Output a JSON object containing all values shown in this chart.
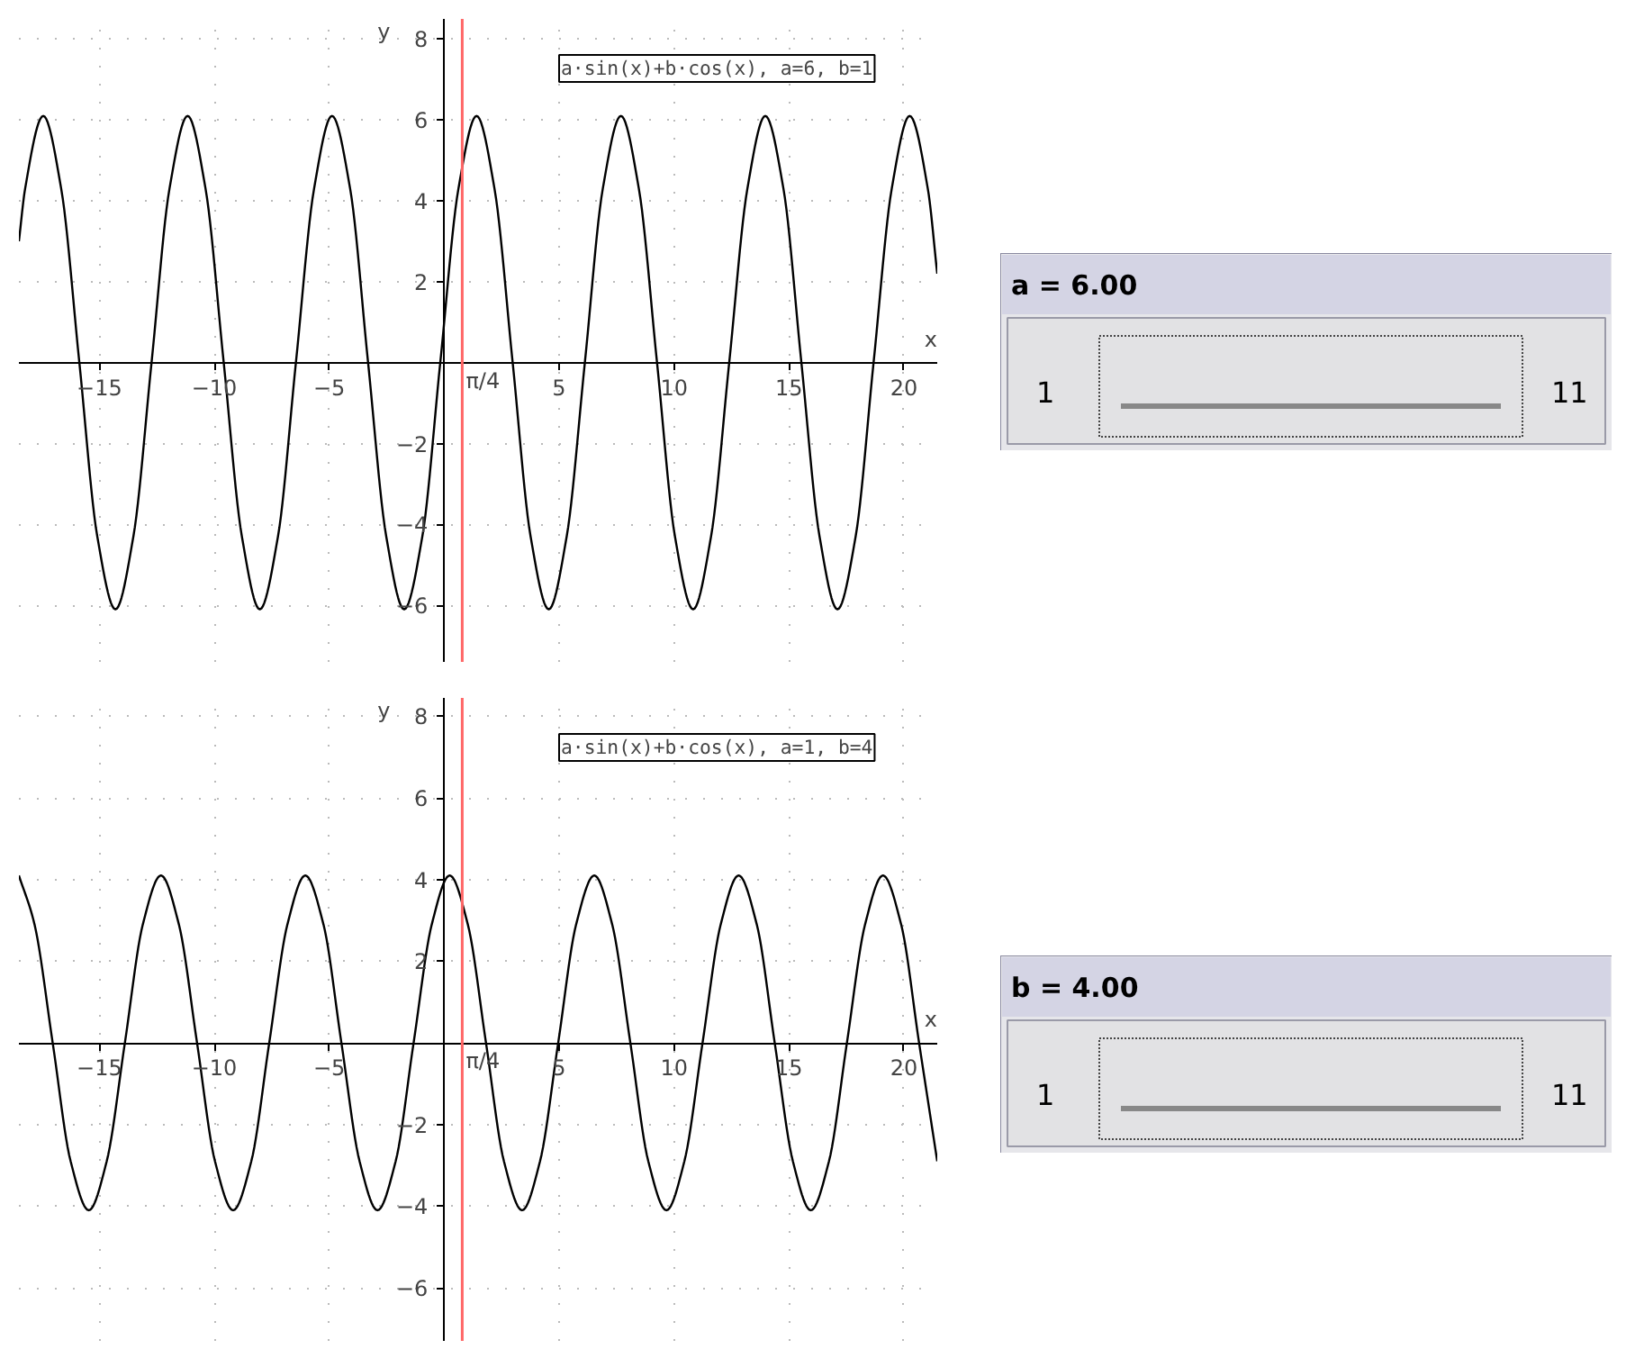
{
  "chart_data": [
    {
      "type": "line",
      "xlabel": "x",
      "ylabel": "y",
      "annotations": [
        "a·sin(x)+b·cos(x), a=6, b=1"
      ],
      "x": [
        -18.5,
        -18.23,
        -17.44,
        -16.66,
        -15.87,
        -15.09,
        -14.3,
        -13.52,
        -12.73,
        -11.95,
        -11.16,
        -10.38,
        -9.59,
        -8.8,
        -8.02,
        -7.23,
        -6.45,
        -5.66,
        -4.88,
        -4.09,
        -3.31,
        -2.52,
        -1.74,
        -0.95,
        -0.17,
        0.62,
        1.41,
        2.19,
        2.98,
        3.76,
        4.55,
        5.33,
        6.12,
        6.9,
        7.69,
        8.47,
        9.26,
        10.04,
        10.83,
        11.61,
        12.4,
        13.19,
        13.97,
        14.76,
        15.54,
        16.33,
        17.11,
        17.9,
        18.68,
        19.47,
        20.25,
        21.04,
        21.45
      ],
      "series": [
        {
          "color": "#000000",
          "values": [
            3.0,
            4.3,
            6.1,
            4.3,
            0,
            -4.3,
            -6.1,
            -4.3,
            0,
            4.3,
            6.1,
            4.3,
            0,
            -4.3,
            -6.1,
            -4.3,
            0,
            4.3,
            6.1,
            4.3,
            0,
            -4.3,
            -6.1,
            -4.3,
            0,
            4.3,
            6.1,
            4.3,
            0,
            -4.3,
            -6.1,
            -4.3,
            0,
            4.3,
            6.1,
            4.3,
            0,
            -4.3,
            -6.1,
            -4.3,
            0,
            4.3,
            6.1,
            4.3,
            0,
            -4.3,
            -6.1,
            -4.3,
            0,
            4.3,
            6.1,
            4.3,
            2.2
          ]
        }
      ],
      "xlim": [
        -18.5,
        21.45
      ],
      "ylim": [
        -7.4,
        8.5
      ],
      "xticks": [
        -15,
        -10,
        -5,
        5,
        10,
        15,
        20
      ],
      "yticks": [
        -6,
        -4,
        -2,
        2,
        4,
        6,
        8
      ],
      "grid": true,
      "ref_lines": [
        {
          "axis": "x",
          "value": 0.785,
          "label": "π/4",
          "color": "#ff6666"
        }
      ]
    },
    {
      "type": "other",
      "title": "a = 6.00",
      "annotations": [
        "1",
        "11"
      ]
    },
    {
      "type": "line",
      "xlabel": "x",
      "ylabel": "y",
      "annotations": [
        "a·sin(x)+b·cos(x), a=1, b=4"
      ],
      "x": [
        -18.5,
        -17.82,
        -17.03,
        -16.25,
        -15.46,
        -14.68,
        -13.89,
        -13.11,
        -12.32,
        -11.54,
        -10.75,
        -9.97,
        -9.18,
        -8.39,
        -7.61,
        -6.82,
        -6.04,
        -5.25,
        -4.47,
        -3.68,
        -2.9,
        -2.11,
        -1.33,
        -0.54,
        0.24,
        1.03,
        1.82,
        2.6,
        3.39,
        4.17,
        4.96,
        5.74,
        6.53,
        7.31,
        8.1,
        8.88,
        9.67,
        10.45,
        11.24,
        12.03,
        12.81,
        13.6,
        14.38,
        15.17,
        15.95,
        16.74,
        17.52,
        18.31,
        19.09,
        19.88,
        20.66,
        21.45
      ],
      "series": [
        {
          "color": "#000000",
          "values": [
            4.1,
            2.9,
            0,
            -2.9,
            -4.1,
            -2.9,
            0,
            2.9,
            4.1,
            2.9,
            0,
            -2.9,
            -4.1,
            -2.9,
            0,
            2.9,
            4.1,
            2.9,
            0,
            -2.9,
            -4.1,
            -2.9,
            0,
            2.9,
            4.1,
            2.9,
            0,
            -2.9,
            -4.1,
            -2.9,
            0,
            2.9,
            4.1,
            2.9,
            0,
            -2.9,
            -4.1,
            -2.9,
            0,
            2.9,
            4.1,
            2.9,
            0,
            -2.9,
            -4.1,
            -2.9,
            0,
            2.9,
            4.1,
            2.9,
            0,
            -2.9
          ]
        }
      ],
      "xlim": [
        -18.5,
        21.45
      ],
      "ylim": [
        -7.3,
        8.45
      ],
      "xticks": [
        -15,
        -10,
        -5,
        5,
        10,
        15,
        20
      ],
      "yticks": [
        -6,
        -4,
        -2,
        2,
        4,
        6,
        8
      ],
      "grid": true,
      "ref_lines": [
        {
          "axis": "x",
          "value": 0.785,
          "label": "π/4",
          "color": "#ff6666"
        }
      ]
    },
    {
      "type": "other",
      "title": "b = 4.00",
      "annotations": [
        "1",
        "11"
      ]
    }
  ]
}
